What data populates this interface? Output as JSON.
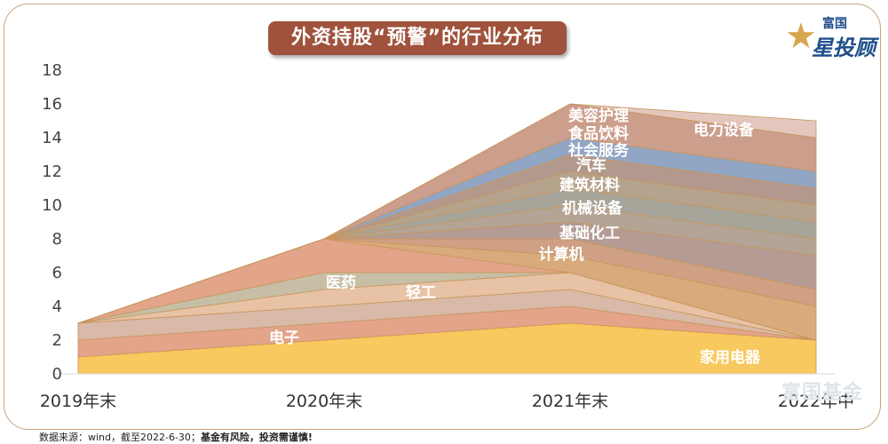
{
  "title": "外资持股“预警”的行业分布",
  "logo": {
    "line1": "富国",
    "line2": "星投顾"
  },
  "watermark": "富国基金",
  "source": {
    "prefix": "数据来源：wind，截至2022-6-30；",
    "warning": "基金有风险，投资需谨慎!"
  },
  "colors": {
    "frame": "#c9a27e",
    "title_bg": "#a0523c"
  },
  "chart_data": {
    "type": "area",
    "stacked": true,
    "title": "外资持股“预警”的行业分布",
    "categories": [
      "2019年末",
      "2020年末",
      "2021年末",
      "2022年中"
    ],
    "ylim": [
      0,
      18
    ],
    "yticks": [
      0,
      2,
      4,
      6,
      8,
      10,
      12,
      14,
      16,
      18
    ],
    "grid": false,
    "series": [
      {
        "name": "家用电器",
        "values": [
          1,
          2,
          3,
          2
        ],
        "color": "#f7c95e"
      },
      {
        "name": "电子",
        "values": [
          1,
          1,
          1,
          0
        ],
        "color": "#e3a48a"
      },
      {
        "name": "",
        "values": [
          1,
          1,
          1,
          0
        ],
        "color": "#d9b9a7"
      },
      {
        "name": "轻工",
        "values": [
          0,
          1,
          1,
          0
        ],
        "color": "#e8c2a4"
      },
      {
        "name": "医药",
        "values": [
          0,
          1,
          0,
          0
        ],
        "color": "#c6bfa6"
      },
      {
        "name": "",
        "values": [
          0,
          2,
          0,
          0
        ],
        "color": "#e2a58a"
      },
      {
        "name": "计算机",
        "values": [
          0,
          0,
          1,
          2
        ],
        "color": "#d9aa7b"
      },
      {
        "name": "基础化工",
        "values": [
          0,
          0,
          1,
          1
        ],
        "color": "#cfa083"
      },
      {
        "name": "机械设备",
        "values": [
          0,
          0,
          1,
          2
        ],
        "color": "#b49b94"
      },
      {
        "name": "建筑材料",
        "values": [
          0,
          0,
          1,
          1
        ],
        "color": "#b3a495"
      },
      {
        "name": "汽车",
        "values": [
          0,
          0,
          1,
          1
        ],
        "color": "#a7a59a"
      },
      {
        "name": "社会服务",
        "values": [
          0,
          0,
          1,
          1
        ],
        "color": "#b6a38e"
      },
      {
        "name": "食品饮料",
        "values": [
          0,
          0,
          1,
          1
        ],
        "color": "#b2988d"
      },
      {
        "name": "美容护理",
        "values": [
          0,
          0,
          1,
          1
        ],
        "color": "#91a6c4"
      },
      {
        "name": "电力设备",
        "values": [
          0,
          0,
          2,
          2
        ],
        "color": "#cc9e8c"
      },
      {
        "name": "",
        "values": [
          0,
          0,
          0,
          1
        ],
        "color": "#e3c7bc"
      }
    ]
  }
}
